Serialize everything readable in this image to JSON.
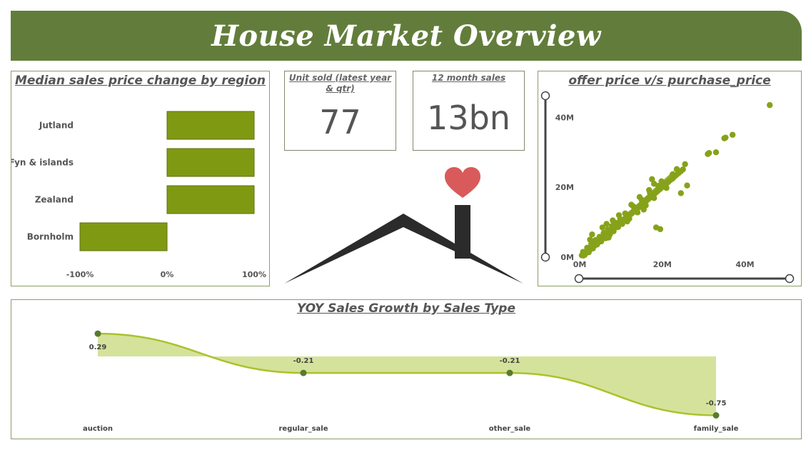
{
  "header": {
    "title": "House Market Overview"
  },
  "cards": {
    "units_sold": {
      "title": "Unit sold (latest year & qtr)",
      "value": "77"
    },
    "twelve_month_sales": {
      "title": "12 month sales",
      "value": "13bn"
    }
  },
  "colors": {
    "banner": "#627d3b",
    "bar": "#7f9a12",
    "scatter": "#86a21a",
    "area_fill": "#d5e29b",
    "area_line": "#a9c22c",
    "point": "#5a7a2f",
    "heart": "#d95a5a",
    "house": "#2b2b2b"
  },
  "icons": {
    "house": "house-icon",
    "heart": "heart-icon"
  },
  "chart_data": [
    {
      "id": "region",
      "type": "bar",
      "orientation": "horizontal",
      "title": "Median sales price change by region",
      "categories": [
        "Jutland",
        "Fyn & islands",
        "Zealand",
        "Bornholm"
      ],
      "values": [
        100,
        100,
        100,
        -100
      ],
      "unit": "%",
      "xlim": [
        -100,
        100
      ],
      "xticks": [
        "-100%",
        "0%",
        "100%"
      ]
    },
    {
      "id": "scatter",
      "type": "scatter",
      "title": "offer price v/s purchase_price",
      "xticks": [
        "0M",
        "20M",
        "40M"
      ],
      "yticks": [
        "0M",
        "20M",
        "40M"
      ],
      "xlim": [
        0,
        47
      ],
      "ylim": [
        0,
        47
      ],
      "points": [
        [
          0.5,
          0.5
        ],
        [
          1,
          0.9
        ],
        [
          1.5,
          1.6
        ],
        [
          2,
          2.1
        ],
        [
          2.5,
          2.4
        ],
        [
          3,
          3.1
        ],
        [
          3.5,
          3.4
        ],
        [
          4,
          4.2
        ],
        [
          4.5,
          4.4
        ],
        [
          5,
          5.1
        ],
        [
          5.5,
          5.6
        ],
        [
          6,
          6.1
        ],
        [
          6.5,
          6.4
        ],
        [
          7,
          7.2
        ],
        [
          7.5,
          7.6
        ],
        [
          8,
          8.1
        ],
        [
          8.5,
          8.5
        ],
        [
          9,
          9.2
        ],
        [
          9.5,
          9.5
        ],
        [
          10,
          10.1
        ],
        [
          10.5,
          10.6
        ],
        [
          11,
          11.1
        ],
        [
          11.5,
          11.6
        ],
        [
          12,
          12.2
        ],
        [
          12.5,
          12.6
        ],
        [
          13,
          13.1
        ],
        [
          13.5,
          13.6
        ],
        [
          14,
          14.1
        ],
        [
          14.5,
          14.6
        ],
        [
          15,
          15.2
        ],
        [
          15.5,
          15.6
        ],
        [
          16,
          16.1
        ],
        [
          16.5,
          16.7
        ],
        [
          17,
          17.2
        ],
        [
          17.5,
          17.6
        ],
        [
          18,
          18.1
        ],
        [
          18.5,
          18.6
        ],
        [
          19,
          19.2
        ],
        [
          19.5,
          19.6
        ],
        [
          20,
          20.2
        ],
        [
          20.5,
          20.6
        ],
        [
          21,
          21.1
        ],
        [
          21.5,
          21.6
        ],
        [
          22,
          22.1
        ],
        [
          22.5,
          22.5
        ],
        [
          23,
          23.1
        ],
        [
          23.5,
          23.6
        ],
        [
          24,
          24.1
        ],
        [
          24.5,
          24.6
        ],
        [
          25,
          25.1
        ],
        [
          1.2,
          0.6
        ],
        [
          2.2,
          1.4
        ],
        [
          3.2,
          2.5
        ],
        [
          4.2,
          3.6
        ],
        [
          5.2,
          4.5
        ],
        [
          6.3,
          5.4
        ],
        [
          7.3,
          6.5
        ],
        [
          8.2,
          7.4
        ],
        [
          9.3,
          8.6
        ],
        [
          10.3,
          9.5
        ],
        [
          0.8,
          1.5
        ],
        [
          1.8,
          2.7
        ],
        [
          2.8,
          3.8
        ],
        [
          3.8,
          4.9
        ],
        [
          4.8,
          5.8
        ],
        [
          5.8,
          6.9
        ],
        [
          6.8,
          7.9
        ],
        [
          7.8,
          8.9
        ],
        [
          8.8,
          9.8
        ],
        [
          9.8,
          10.9
        ],
        [
          11,
          12.5
        ],
        [
          12,
          11
        ],
        [
          13,
          14.5
        ],
        [
          14,
          12.8
        ],
        [
          15,
          16.4
        ],
        [
          16,
          14.8
        ],
        [
          17,
          18.4
        ],
        [
          18,
          16.9
        ],
        [
          19,
          20.4
        ],
        [
          21,
          19.8
        ],
        [
          3,
          6.5
        ],
        [
          5.5,
          8.5
        ],
        [
          8,
          10.5
        ],
        [
          12.5,
          15
        ],
        [
          16.8,
          19.2
        ],
        [
          19.8,
          21.7
        ],
        [
          14.5,
          17.2
        ],
        [
          9.5,
          12
        ],
        [
          6.5,
          9.5
        ],
        [
          2.5,
          5
        ],
        [
          18,
          21
        ],
        [
          22.5,
          23.7
        ],
        [
          23.5,
          25.2
        ],
        [
          25.5,
          26.6
        ],
        [
          17.5,
          22.3
        ],
        [
          11.5,
          10.2
        ],
        [
          15.5,
          13.6
        ],
        [
          7,
          5.6
        ],
        [
          18.5,
          8.5
        ],
        [
          19.5,
          8
        ],
        [
          24.5,
          18.3
        ],
        [
          26,
          20.5
        ],
        [
          31,
          29.5
        ],
        [
          31.3,
          29.8
        ],
        [
          33,
          30
        ],
        [
          35,
          34
        ],
        [
          35.3,
          34.2
        ],
        [
          37,
          35
        ],
        [
          46,
          43.5
        ]
      ]
    },
    {
      "id": "yoy",
      "type": "area",
      "title": "YOY Sales Growth by Sales Type",
      "categories": [
        "auction",
        "regular_sale",
        "other_sale",
        "family_sale"
      ],
      "values": [
        0.29,
        -0.21,
        -0.21,
        -0.75
      ],
      "value_labels": [
        "0.29",
        "-0.21",
        "-0.21",
        "-0.75"
      ]
    }
  ]
}
